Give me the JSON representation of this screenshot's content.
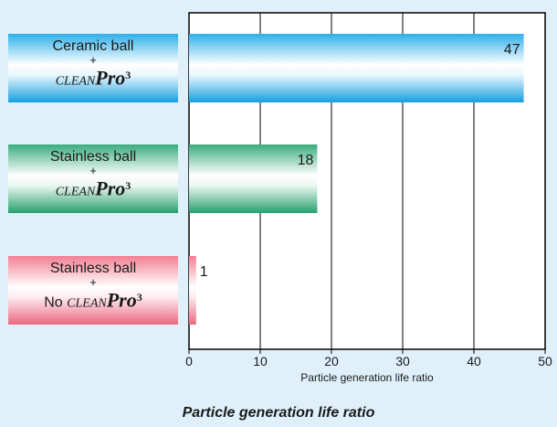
{
  "chart_data": {
    "type": "bar",
    "orientation": "horizontal",
    "categories": [
      {
        "line1": "Ceramic ball",
        "plus": "+",
        "prefix": "",
        "brand_a": "CLEAN",
        "brand_b": "Pro",
        "brand_c": "3",
        "color": "blue"
      },
      {
        "line1": "Stainless ball",
        "plus": "+",
        "prefix": "",
        "brand_a": "CLEAN",
        "brand_b": "Pro",
        "brand_c": "3",
        "color": "green"
      },
      {
        "line1": "Stainless ball",
        "plus": "+",
        "prefix": "No ",
        "brand_a": "CLEAN",
        "brand_b": "Pro",
        "brand_c": "3",
        "color": "pink"
      }
    ],
    "values": [
      47,
      18,
      1
    ],
    "value_labels": [
      "47",
      "18",
      "1"
    ],
    "xlim": [
      0,
      50
    ],
    "xticks": [
      0,
      10,
      20,
      30,
      40,
      50
    ],
    "xtick_labels": [
      "0",
      "10",
      "20",
      "30",
      "40",
      "50"
    ],
    "xlabel": "Particle generation life ratio",
    "grid": true
  },
  "title": "Particle generation life ratio",
  "colors": {
    "background": "#dff0fb",
    "blue_edge": "#1aa3e2",
    "blue_mid": "#ffffff",
    "green_edge": "#2ba372",
    "green_mid": "#ffffff",
    "pink_edge": "#ee6f84",
    "pink_mid": "#ffffff"
  }
}
